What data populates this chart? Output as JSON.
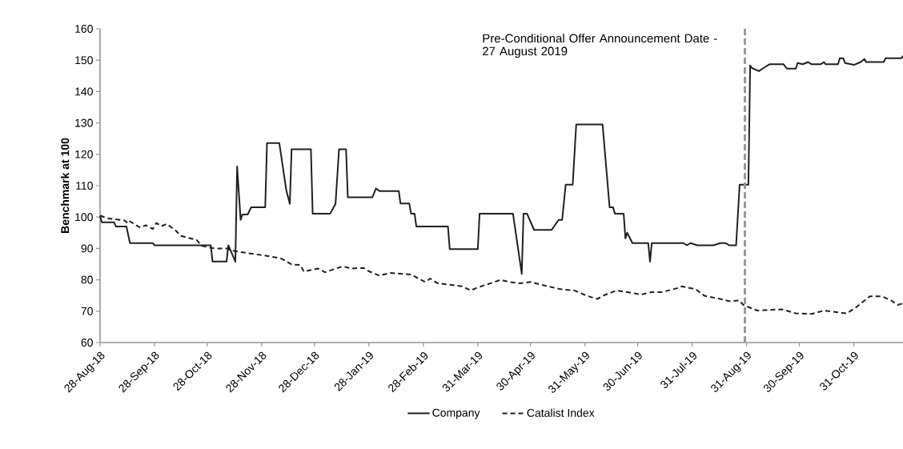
{
  "chart_data": {
    "type": "line",
    "ylabel": "Benchmark  at 100",
    "x": [
      "2018-08-28",
      "2018-08-29",
      "2018-09-05",
      "2018-09-06",
      "2018-09-12",
      "2018-09-14",
      "2018-09-27",
      "2018-09-28",
      "2018-10-30",
      "2018-10-31",
      "2018-11-08",
      "2018-11-09",
      "2018-11-13",
      "2018-11-14",
      "2018-11-16",
      "2018-11-17",
      "2018-11-20",
      "2018-11-22",
      "2018-11-30",
      "2018-12-01",
      "2018-12-08",
      "2018-12-12",
      "2018-12-14",
      "2018-12-15",
      "2018-12-26",
      "2018-12-27",
      "2019-01-06",
      "2019-01-09",
      "2019-01-11",
      "2019-01-15",
      "2019-01-16",
      "2019-01-30",
      "2019-02-01",
      "2019-02-03",
      "2019-02-14",
      "2019-02-15",
      "2019-02-20",
      "2019-02-21",
      "2019-02-23",
      "2019-02-24",
      "2019-03-14",
      "2019-03-15",
      "2019-03-31",
      "2019-04-01",
      "2019-04-20",
      "2019-04-25",
      "2019-04-26",
      "2019-04-28",
      "2019-05-02",
      "2019-05-12",
      "2019-05-16",
      "2019-05-18",
      "2019-05-20",
      "2019-05-24",
      "2019-05-26",
      "2019-06-10",
      "2019-06-14",
      "2019-06-16",
      "2019-06-17",
      "2019-06-22",
      "2019-06-23",
      "2019-06-24",
      "2019-06-27",
      "2019-07-06",
      "2019-07-07",
      "2019-07-08",
      "2019-07-26",
      "2019-07-28",
      "2019-07-30",
      "2019-08-03",
      "2019-08-12",
      "2019-08-16",
      "2019-08-19",
      "2019-08-21",
      "2019-08-25",
      "2019-08-27",
      "2019-09-01",
      "2019-09-02",
      "2019-09-03",
      "2019-09-07",
      "2019-09-09",
      "2019-09-13",
      "2019-09-21",
      "2019-09-23",
      "2019-09-28",
      "2019-09-29",
      "2019-10-02",
      "2019-10-05",
      "2019-10-07",
      "2019-10-12",
      "2019-10-14",
      "2019-10-15",
      "2019-10-22",
      "2019-10-23",
      "2019-10-25",
      "2019-10-26",
      "2019-10-31",
      "2019-11-04",
      "2019-11-06",
      "2019-11-07",
      "2019-11-17",
      "2019-11-18",
      "2019-11-27",
      "2019-11-28"
    ],
    "series": [
      {
        "name": "Company",
        "color": "#231f20",
        "line_style": "solid",
        "values": [
          100.4,
          98.3,
          98.3,
          97.0,
          97.0,
          91.7,
          91.7,
          91.0,
          91.0,
          85.8,
          85.8,
          91.0,
          85.8,
          116.1,
          99.1,
          100.8,
          100.8,
          103.1,
          103.1,
          123.6,
          123.6,
          108.5,
          104.2,
          121.6,
          121.6,
          101.1,
          101.1,
          104.2,
          121.6,
          121.6,
          106.3,
          106.3,
          109.1,
          108.3,
          108.3,
          104.3,
          104.3,
          101.1,
          101.1,
          97.0,
          97.0,
          89.8,
          89.8,
          101.1,
          101.1,
          81.9,
          101.1,
          101.1,
          95.9,
          95.9,
          99.1,
          99.1,
          110.3,
          110.3,
          129.5,
          129.5,
          103.1,
          103.1,
          101.1,
          101.1,
          93.2,
          95.0,
          91.7,
          91.7,
          85.8,
          91.7,
          91.7,
          91.0,
          91.7,
          91.0,
          91.0,
          91.7,
          91.7,
          91.0,
          91.0,
          110.3,
          110.3,
          148.3,
          147.5,
          146.5,
          147.3,
          148.7,
          148.7,
          147.3,
          147.3,
          149.1,
          148.7,
          149.4,
          148.7,
          148.7,
          149.4,
          148.7,
          148.7,
          150.6,
          150.6,
          149.1,
          148.5,
          149.4,
          150.4,
          149.4,
          149.4,
          150.6,
          150.6,
          151.4
        ]
      },
      {
        "name": "Catalist Index",
        "color": "#231f20",
        "line_style": "dashed",
        "x": [
          "2018-08-28",
          "2018-09-01",
          "2018-09-11",
          "2018-09-13",
          "2018-09-14",
          "2018-09-20",
          "2018-09-23",
          "2018-09-27",
          "2018-09-29",
          "2018-10-02",
          "2018-10-05",
          "2018-10-10",
          "2018-10-13",
          "2018-10-22",
          "2018-10-25",
          "2018-11-01",
          "2018-11-08",
          "2018-11-11",
          "2018-11-19",
          "2018-12-01",
          "2018-12-09",
          "2018-12-15",
          "2018-12-20",
          "2018-12-22",
          "2018-12-30",
          "2019-01-03",
          "2019-01-13",
          "2019-01-18",
          "2019-01-25",
          "2019-01-28",
          "2019-02-03",
          "2019-02-09",
          "2019-02-21",
          "2019-03-01",
          "2019-03-04",
          "2019-03-08",
          "2019-03-17",
          "2019-03-22",
          "2019-03-27",
          "2019-03-31",
          "2019-04-09",
          "2019-04-13",
          "2019-04-18",
          "2019-04-24",
          "2019-04-30",
          "2019-05-10",
          "2019-05-17",
          "2019-05-25",
          "2019-06-01",
          "2019-06-07",
          "2019-06-11",
          "2019-06-18",
          "2019-06-27",
          "2019-07-02",
          "2019-07-08",
          "2019-07-14",
          "2019-07-23",
          "2019-07-25",
          "2019-08-02",
          "2019-08-07",
          "2019-08-16",
          "2019-08-21",
          "2019-08-27",
          "2019-08-29",
          "2019-09-06",
          "2019-09-20",
          "2019-09-28",
          "2019-10-07",
          "2019-10-14",
          "2019-10-27",
          "2019-11-01",
          "2019-11-09",
          "2019-11-16",
          "2019-11-21",
          "2019-11-25",
          "2019-11-28"
        ],
        "values": [
          100.5,
          99.6,
          98.9,
          97.9,
          98.6,
          96.6,
          97.4,
          96.2,
          98.1,
          97.1,
          97.8,
          95.7,
          94.0,
          92.7,
          90.8,
          90.0,
          90.0,
          89.3,
          88.6,
          87.6,
          86.8,
          84.9,
          84.7,
          82.6,
          83.6,
          82.4,
          84.3,
          83.6,
          83.8,
          82.7,
          81.3,
          82.2,
          81.7,
          79.3,
          80.4,
          78.9,
          78.3,
          77.9,
          76.6,
          77.6,
          79.2,
          80.0,
          79.3,
          78.9,
          79.3,
          77.9,
          77.0,
          76.6,
          74.9,
          73.9,
          75.1,
          76.6,
          75.8,
          75.3,
          76.1,
          76.1,
          77.4,
          77.9,
          77.0,
          74.9,
          73.9,
          73.2,
          73.4,
          72.0,
          70.2,
          70.6,
          69.3,
          69.1,
          70.2,
          69.3,
          71.1,
          74.7,
          74.7,
          73.5,
          72.0,
          72.5
        ]
      }
    ],
    "xlim": [
      "2018-08-28",
      "2019-11-28"
    ],
    "xticks": [
      {
        "value": "2018-08-28",
        "label": "28-Aug-18"
      },
      {
        "value": "2018-09-28",
        "label": "28-Sep-18"
      },
      {
        "value": "2018-10-28",
        "label": "28-Oct-18"
      },
      {
        "value": "2018-11-28",
        "label": "28-Nov-18"
      },
      {
        "value": "2018-12-28",
        "label": "28-Dec-18"
      },
      {
        "value": "2019-01-28",
        "label": "28-Jan-19"
      },
      {
        "value": "2019-02-28",
        "label": "28-Feb-19"
      },
      {
        "value": "2019-03-31",
        "label": "31-Mar-19"
      },
      {
        "value": "2019-04-30",
        "label": "30-Apr-19"
      },
      {
        "value": "2019-05-31",
        "label": "31-May-19"
      },
      {
        "value": "2019-06-30",
        "label": "30-Jun-19"
      },
      {
        "value": "2019-07-31",
        "label": "31-Jul-19"
      },
      {
        "value": "2019-08-31",
        "label": "31-Aug-19"
      },
      {
        "value": "2019-09-30",
        "label": "30-Sep-19"
      },
      {
        "value": "2019-10-31",
        "label": "31-Oct-19"
      }
    ],
    "ylim": [
      60,
      160
    ],
    "yticks": [
      60,
      70,
      80,
      90,
      100,
      110,
      120,
      130,
      140,
      150,
      160
    ],
    "ref_lines": [
      {
        "axis": "x",
        "value": "2019-08-30",
        "label": "Pre-Conditional Offer Announcement Date - 27 August 2019",
        "color": "#999999",
        "line_style": "dashed"
      }
    ],
    "legend": "bottom",
    "marker": "none"
  }
}
